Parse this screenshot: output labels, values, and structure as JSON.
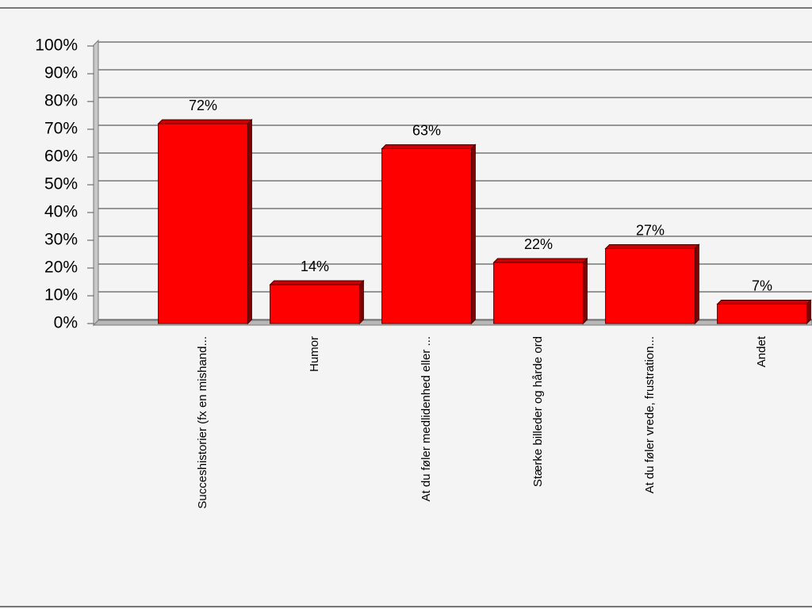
{
  "chart_data": {
    "type": "bar",
    "categories": [
      "Succeshistorier (fx en mishand...",
      "Humor",
      "At du føler medlidenhed eller ...",
      "Stærke billeder og hårde ord",
      "At du føler vrede, frustration...",
      "Andet"
    ],
    "values": [
      72,
      14,
      63,
      22,
      27,
      7
    ],
    "value_labels": [
      "72%",
      "14%",
      "63%",
      "22%",
      "27%",
      "7%"
    ],
    "color": "#ff0000",
    "ylim": [
      0,
      100
    ],
    "yticks": [
      {
        "value": 0,
        "label": "0%"
      },
      {
        "value": 10,
        "label": "10%"
      },
      {
        "value": 20,
        "label": "20%"
      },
      {
        "value": 30,
        "label": "30%"
      },
      {
        "value": 40,
        "label": "40%"
      },
      {
        "value": 50,
        "label": "50%"
      },
      {
        "value": 60,
        "label": "60%"
      },
      {
        "value": 70,
        "label": "70%"
      },
      {
        "value": 80,
        "label": "80%"
      },
      {
        "value": 90,
        "label": "90%"
      },
      {
        "value": 100,
        "label": "100%"
      }
    ],
    "grid": true
  }
}
